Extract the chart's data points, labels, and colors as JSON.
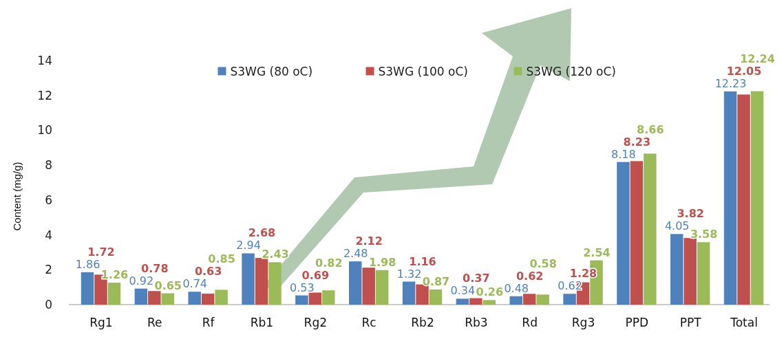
{
  "chart_data": {
    "type": "bar",
    "ylabel": "Content (mg/g)",
    "categories": [
      "Rg1",
      "Re",
      "Rf",
      "Rb1",
      "Rg2",
      "Rc",
      "Rb2",
      "Rb3",
      "Rd",
      "Rg3",
      "PPD",
      "PPT",
      "Total"
    ],
    "series": [
      {
        "name": "S3WG (80 oC)",
        "color": "#4f81bd",
        "values": [
          1.86,
          0.92,
          0.74,
          2.94,
          0.53,
          2.48,
          1.32,
          0.34,
          0.48,
          0.62,
          8.18,
          4.05,
          12.23
        ]
      },
      {
        "name": "S3WG (100 oC)",
        "color": "#c0504d",
        "values": [
          1.72,
          0.78,
          0.63,
          2.68,
          0.69,
          2.12,
          1.16,
          0.37,
          0.62,
          1.28,
          8.23,
          3.82,
          12.05
        ]
      },
      {
        "name": "S3WG (120 oC)",
        "color": "#9bbb59",
        "values": [
          1.26,
          0.65,
          0.85,
          2.43,
          0.82,
          1.98,
          0.87,
          0.26,
          0.58,
          2.54,
          8.66,
          3.58,
          12.24
        ]
      }
    ],
    "ylim": [
      0,
      14
    ],
    "yticks": [
      0,
      2,
      4,
      6,
      8,
      10,
      12,
      14
    ],
    "legend": "top",
    "data_labels": true,
    "grid": false
  }
}
